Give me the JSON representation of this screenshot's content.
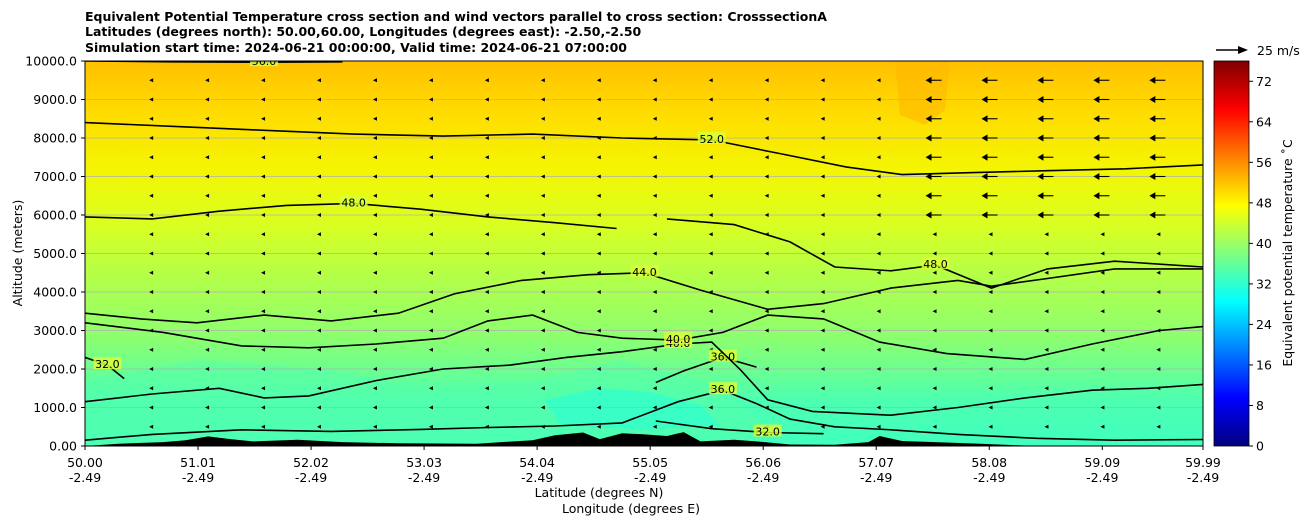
{
  "chart_data": {
    "type": "contourf",
    "title_lines": [
      "Equivalent Potential Temperature cross section and wind vectors parallel to cross section: CrosssectionA",
      "Latitudes (degrees north): 50.00,60.00, Longitudes (degrees east): -2.50,-2.50",
      "Simulation start time: 2024-06-21 00:00:00, Valid time: 2024-06-21 07:00:00"
    ],
    "ylabel": "Altitude (meters)",
    "xlabel_lines": [
      "Latitude (degrees N)",
      "Longitude (degrees E)"
    ],
    "ylim": [
      0,
      10000
    ],
    "xlim": [
      50.0,
      59.99
    ],
    "y_ticks": [
      {
        "value": 0,
        "label": "0.00"
      },
      {
        "value": 1000,
        "label": "1000.0"
      },
      {
        "value": 2000,
        "label": "2000.0"
      },
      {
        "value": 3000,
        "label": "3000.0"
      },
      {
        "value": 4000,
        "label": "4000.0"
      },
      {
        "value": 5000,
        "label": "5000.0"
      },
      {
        "value": 6000,
        "label": "6000.0"
      },
      {
        "value": 7000,
        "label": "7000.0"
      },
      {
        "value": 8000,
        "label": "8000.0"
      },
      {
        "value": 9000,
        "label": "9000.0"
      },
      {
        "value": 10000,
        "label": "10000.0"
      }
    ],
    "x_ticks": [
      {
        "lat": 50.0,
        "lat_label": "50.00",
        "lon_label": "-2.49"
      },
      {
        "lat": 51.01,
        "lat_label": "51.01",
        "lon_label": "-2.49"
      },
      {
        "lat": 52.02,
        "lat_label": "52.02",
        "lon_label": "-2.49"
      },
      {
        "lat": 53.03,
        "lat_label": "53.03",
        "lon_label": "-2.49"
      },
      {
        "lat": 54.04,
        "lat_label": "54.04",
        "lon_label": "-2.49"
      },
      {
        "lat": 55.05,
        "lat_label": "55.05",
        "lon_label": "-2.49"
      },
      {
        "lat": 56.06,
        "lat_label": "56.06",
        "lon_label": "-2.49"
      },
      {
        "lat": 57.07,
        "lat_label": "57.07",
        "lon_label": "-2.49"
      },
      {
        "lat": 58.08,
        "lat_label": "58.08",
        "lon_label": "-2.49"
      },
      {
        "lat": 59.09,
        "lat_label": "59.09",
        "lon_label": "-2.49"
      },
      {
        "lat": 59.99,
        "lat_label": "59.99",
        "lon_label": "-2.49"
      }
    ],
    "grid": "horizontal",
    "colorbar": {
      "label": "Equivalent potential temperature ˚C",
      "min": 0,
      "max": 76,
      "ticks": [
        0,
        8,
        16,
        24,
        32,
        40,
        48,
        56,
        64,
        72
      ],
      "tick_labels": [
        "0",
        "8",
        "16",
        "24",
        "32",
        "40",
        "48",
        "56",
        "64",
        "72"
      ],
      "cmap": "jet"
    },
    "wind_key": {
      "label": "25 m/s",
      "speed": 25
    },
    "contours": [
      {
        "level": 32,
        "label": "32.0",
        "points": [
          [
            50.0,
            2300
          ],
          [
            50.2,
            2100
          ],
          [
            50.35,
            1750
          ]
        ]
      },
      {
        "level": 32,
        "label": "32.0",
        "points": [
          [
            55.1,
            650
          ],
          [
            55.6,
            450
          ],
          [
            56.1,
            350
          ],
          [
            56.6,
            320
          ]
        ]
      },
      {
        "level": 36,
        "label": "36.0",
        "points": [
          [
            50.0,
            150
          ],
          [
            50.6,
            300
          ],
          [
            51.4,
            420
          ],
          [
            52.2,
            380
          ],
          [
            53.0,
            430
          ],
          [
            53.6,
            480
          ],
          [
            54.2,
            520
          ],
          [
            54.8,
            600
          ],
          [
            55.3,
            1150
          ],
          [
            55.7,
            1450
          ],
          [
            56.0,
            1100
          ],
          [
            56.3,
            700
          ],
          [
            56.7,
            500
          ],
          [
            57.2,
            420
          ],
          [
            57.8,
            300
          ],
          [
            58.5,
            200
          ],
          [
            59.2,
            150
          ],
          [
            59.99,
            170
          ]
        ]
      },
      {
        "level": 36,
        "label": "36.0",
        "points": [
          [
            55.1,
            1650
          ],
          [
            55.35,
            1950
          ],
          [
            55.7,
            2300
          ],
          [
            56.0,
            2050
          ]
        ]
      },
      {
        "level": 40,
        "label": "40.0",
        "points": [
          [
            50.0,
            1150
          ],
          [
            50.6,
            1350
          ],
          [
            51.2,
            1500
          ],
          [
            51.6,
            1250
          ],
          [
            52.0,
            1300
          ],
          [
            52.6,
            1700
          ],
          [
            53.2,
            2000
          ],
          [
            53.8,
            2100
          ],
          [
            54.3,
            2300
          ],
          [
            54.8,
            2450
          ],
          [
            55.3,
            2650
          ],
          [
            55.6,
            2700
          ],
          [
            55.85,
            2000
          ],
          [
            56.1,
            1200
          ],
          [
            56.5,
            900
          ],
          [
            57.2,
            800
          ],
          [
            57.8,
            1000
          ],
          [
            58.4,
            1250
          ],
          [
            59.0,
            1450
          ],
          [
            59.5,
            1500
          ],
          [
            59.99,
            1600
          ]
        ]
      },
      {
        "level": 40,
        "label": "40.0",
        "points": [
          [
            50.0,
            3200
          ],
          [
            50.7,
            2950
          ],
          [
            51.4,
            2600
          ],
          [
            52.0,
            2550
          ],
          [
            52.6,
            2650
          ],
          [
            53.2,
            2800
          ],
          [
            53.6,
            3250
          ],
          [
            54.0,
            3400
          ],
          [
            54.4,
            2950
          ],
          [
            54.8,
            2800
          ],
          [
            55.3,
            2750
          ],
          [
            55.7,
            2950
          ],
          [
            56.1,
            3400
          ],
          [
            56.6,
            3300
          ],
          [
            57.1,
            2700
          ],
          [
            57.7,
            2400
          ],
          [
            58.4,
            2250
          ],
          [
            59.0,
            2650
          ],
          [
            59.6,
            3000
          ],
          [
            59.99,
            3100
          ]
        ]
      },
      {
        "level": 44,
        "label": "44.0",
        "points": [
          [
            50.0,
            3450
          ],
          [
            50.5,
            3300
          ],
          [
            51.0,
            3200
          ],
          [
            51.6,
            3400
          ],
          [
            52.2,
            3250
          ],
          [
            52.8,
            3450
          ],
          [
            53.3,
            3950
          ],
          [
            53.9,
            4300
          ],
          [
            54.5,
            4450
          ],
          [
            55.0,
            4500
          ],
          [
            55.5,
            4050
          ],
          [
            56.1,
            3550
          ],
          [
            56.6,
            3700
          ],
          [
            57.2,
            4100
          ],
          [
            57.8,
            4300
          ],
          [
            58.1,
            4150
          ],
          [
            58.6,
            4350
          ],
          [
            59.2,
            4600
          ],
          [
            59.99,
            4600
          ]
        ]
      },
      {
        "level": 48,
        "label": "48.0",
        "points": [
          [
            50.0,
            5950
          ],
          [
            50.6,
            5900
          ],
          [
            51.2,
            6100
          ],
          [
            51.8,
            6250
          ],
          [
            52.4,
            6300
          ],
          [
            53.0,
            6150
          ],
          [
            53.6,
            5950
          ],
          [
            54.2,
            5800
          ],
          [
            54.75,
            5650
          ]
        ]
      },
      {
        "level": 48,
        "label": "48.0",
        "points": [
          [
            55.2,
            5900
          ],
          [
            55.8,
            5750
          ],
          [
            56.3,
            5300
          ],
          [
            56.7,
            4650
          ],
          [
            57.2,
            4550
          ],
          [
            57.6,
            4700
          ],
          [
            58.1,
            4100
          ],
          [
            58.6,
            4600
          ],
          [
            59.2,
            4800
          ],
          [
            59.99,
            4650
          ]
        ]
      },
      {
        "level": 52,
        "label": "52.0",
        "points": [
          [
            50.0,
            8400
          ],
          [
            50.8,
            8300
          ],
          [
            51.6,
            8200
          ],
          [
            52.4,
            8100
          ],
          [
            53.2,
            8050
          ],
          [
            54.0,
            8100
          ],
          [
            54.8,
            8000
          ],
          [
            55.6,
            7950
          ],
          [
            56.2,
            7600
          ],
          [
            56.8,
            7250
          ],
          [
            57.3,
            7050
          ],
          [
            57.9,
            7100
          ],
          [
            58.6,
            7150
          ],
          [
            59.3,
            7200
          ],
          [
            59.99,
            7300
          ]
        ]
      },
      {
        "level": 56,
        "label": "56.0",
        "points": [
          [
            50.0,
            10000
          ],
          [
            50.8,
            9980
          ],
          [
            51.6,
            9970
          ],
          [
            52.3,
            9980
          ]
        ]
      }
    ],
    "terrain": [
      [
        50.0,
        0
      ],
      [
        50.3,
        60
      ],
      [
        50.7,
        100
      ],
      [
        50.9,
        150
      ],
      [
        51.1,
        250
      ],
      [
        51.3,
        180
      ],
      [
        51.5,
        120
      ],
      [
        51.9,
        160
      ],
      [
        52.3,
        100
      ],
      [
        52.8,
        70
      ],
      [
        53.5,
        60
      ],
      [
        54.0,
        150
      ],
      [
        54.2,
        280
      ],
      [
        54.45,
        350
      ],
      [
        54.6,
        180
      ],
      [
        54.8,
        330
      ],
      [
        55.0,
        300
      ],
      [
        55.2,
        260
      ],
      [
        55.35,
        360
      ],
      [
        55.5,
        120
      ],
      [
        55.8,
        160
      ],
      [
        56.0,
        120
      ],
      [
        56.3,
        40
      ],
      [
        56.7,
        30
      ],
      [
        57.0,
        100
      ],
      [
        57.1,
        260
      ],
      [
        57.3,
        130
      ],
      [
        57.6,
        100
      ],
      [
        58.0,
        60
      ],
      [
        58.5,
        0
      ],
      [
        59.99,
        0
      ]
    ]
  }
}
